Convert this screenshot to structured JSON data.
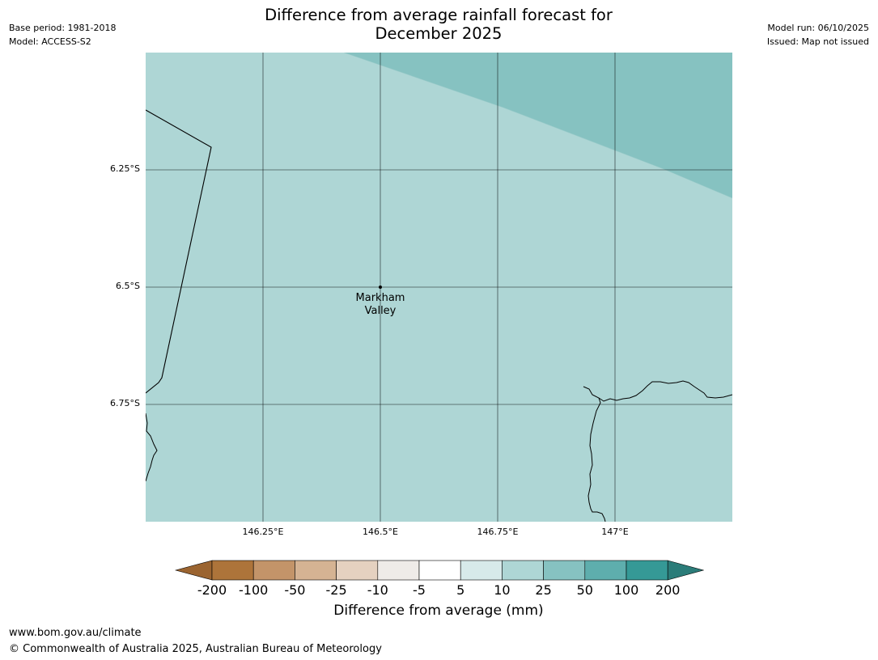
{
  "header": {
    "title_line1": "Difference from average rainfall forecast for",
    "title_line2": "December 2025",
    "base_period": "Base period: 1981-2018",
    "model": "Model: ACCESS-S2",
    "model_run": "Model run: 06/10/2025",
    "issued": "Issued: Map not issued"
  },
  "map": {
    "background_color": "#aed6d5",
    "upper_band_color": "#86c2c1",
    "latitude_labels": [
      "6.25°S",
      "6.5°S",
      "6.75°S"
    ],
    "longitude_labels": [
      "146.25°E",
      "146.5°E",
      "146.75°E",
      "147°E"
    ],
    "place": {
      "name_line1": "Markham",
      "name_line2": "Valley"
    }
  },
  "colorbar": {
    "label": "Difference from average (mm)",
    "ticks": [
      "-200",
      "-100",
      "-50",
      "-25",
      "-10",
      "-5",
      "5",
      "10",
      "25",
      "50",
      "100",
      "200"
    ],
    "colors": [
      "#9b6430",
      "#ad743a",
      "#c39469",
      "#d5b393",
      "#e5d1c0",
      "#efebe8",
      "#ffffff",
      "#d7eaea",
      "#aed6d5",
      "#86c2c1",
      "#5eaead",
      "#359996",
      "#2b7c79"
    ]
  },
  "footer": {
    "url": "www.bom.gov.au/climate",
    "copyright": "© Commonwealth of Australia 2025, Australian Bureau of Meteorology"
  }
}
